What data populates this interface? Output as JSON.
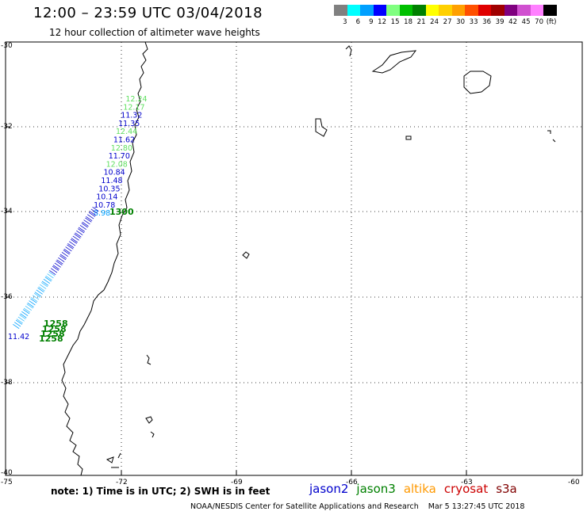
{
  "header": {
    "title": "12:00 – 23:59 UTC 03/04/2018",
    "subtitle": "12 hour collection of altimeter wave heights"
  },
  "color_scale": {
    "labels": [
      "3",
      "6",
      "9",
      "12",
      "15",
      "18",
      "21",
      "24",
      "27",
      "30",
      "33",
      "36",
      "39",
      "42",
      "45",
      "70",
      "(ft)"
    ],
    "colors": [
      "#808080",
      "#00ffff",
      "#00a0ff",
      "#0000ff",
      "#80ff80",
      "#00c000",
      "#008000",
      "#ffff00",
      "#ffd000",
      "#ffa000",
      "#ff5000",
      "#e00000",
      "#a00000",
      "#800080",
      "#d050d0",
      "#ff80ff",
      "#000000"
    ]
  },
  "axes": {
    "lat_labels": [
      "-30",
      "-32",
      "-34",
      "-36",
      "-38",
      "-40"
    ],
    "lon_labels": [
      "-75",
      "-72",
      "-69",
      "-66",
      "-63",
      "-60"
    ]
  },
  "footer": {
    "note": "note: 1) Time is in UTC; 2) SWH is in feet",
    "satellites": [
      {
        "name": "jason2",
        "color": "#0000cc"
      },
      {
        "name": "jason3",
        "color": "#008000"
      },
      {
        "name": "altika",
        "color": "#ff9900"
      },
      {
        "name": "cryosat",
        "color": "#cc0000"
      },
      {
        "name": "s3a",
        "color": "#800000"
      }
    ],
    "credit": "NOAA/NESDIS Center for Satellite Applications and Research",
    "timestamp": "Mar  5 13:27:45 UTC 2018"
  },
  "observations": {
    "track_values": [
      "12.24",
      "12.17",
      "11.32",
      "11.35",
      "12.44",
      "11.62",
      "12.80",
      "11.70",
      "12.08",
      "10.84",
      "11.48",
      "10.35",
      "10.14",
      "10.78",
      "8.98"
    ],
    "track_colors": [
      "#60e060",
      "#60e060",
      "#0000cc",
      "#0000cc",
      "#60e060",
      "#0000cc",
      "#60e060",
      "#0000cc",
      "#60e060",
      "#0000cc",
      "#0000cc",
      "#0000cc",
      "#0000cc",
      "#0000cc",
      "#00a0ff"
    ],
    "time_labels": [
      "1300",
      "1258",
      "1258",
      "1258",
      "1258"
    ],
    "lower_value": "11.42"
  }
}
